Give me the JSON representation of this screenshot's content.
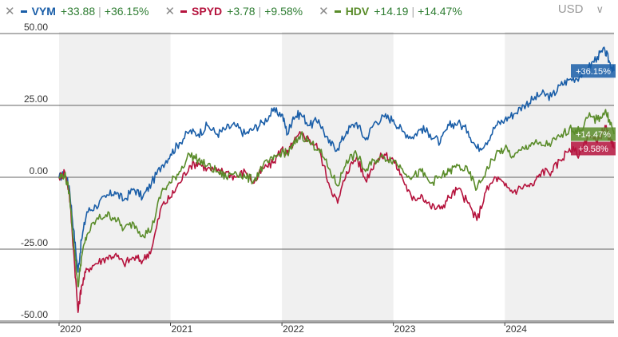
{
  "legend": [
    {
      "ticker": "VYM",
      "delta": "+33.88",
      "pct": "+36.15%",
      "color": "#1a5ea8"
    },
    {
      "ticker": "SPYD",
      "delta": "+3.78",
      "pct": "+9.58%",
      "color": "#b5133d"
    },
    {
      "ticker": "HDV",
      "delta": "+14.19",
      "pct": "+14.47%",
      "color": "#5a8c2a"
    }
  ],
  "currency": {
    "label": "USD",
    "chevron": "∨"
  },
  "chart_data": {
    "type": "line",
    "ylim": [
      -50,
      50
    ],
    "yticks": [
      "50.00",
      "25.00",
      "0.00",
      "-25.00",
      "-50.00"
    ],
    "ytick_values": [
      50,
      25,
      0,
      -25,
      -50
    ],
    "xticks": [
      "2020",
      "2021",
      "2022",
      "2023",
      "2024"
    ],
    "x_range": [
      2020.0,
      2024.98
    ],
    "shaded_years": [
      [
        2020,
        2021
      ],
      [
        2022,
        2023
      ],
      [
        2024,
        2024.98
      ]
    ],
    "series": [
      {
        "name": "VYM",
        "color": "#1a5ea8",
        "end_label": "+36.15%",
        "points": [
          [
            2020.0,
            0
          ],
          [
            2020.05,
            1
          ],
          [
            2020.09,
            -3
          ],
          [
            2020.13,
            -18
          ],
          [
            2020.17,
            -33
          ],
          [
            2020.2,
            -22
          ],
          [
            2020.25,
            -12
          ],
          [
            2020.33,
            -10
          ],
          [
            2020.42,
            -7
          ],
          [
            2020.5,
            -5
          ],
          [
            2020.58,
            -8
          ],
          [
            2020.67,
            -4
          ],
          [
            2020.75,
            -7
          ],
          [
            2020.83,
            -2
          ],
          [
            2020.92,
            4
          ],
          [
            2021.0,
            8
          ],
          [
            2021.08,
            12
          ],
          [
            2021.17,
            16
          ],
          [
            2021.25,
            15
          ],
          [
            2021.33,
            18
          ],
          [
            2021.42,
            15
          ],
          [
            2021.5,
            17
          ],
          [
            2021.58,
            18
          ],
          [
            2021.67,
            15
          ],
          [
            2021.75,
            17
          ],
          [
            2021.83,
            19
          ],
          [
            2021.92,
            23
          ],
          [
            2022.0,
            22
          ],
          [
            2022.05,
            15
          ],
          [
            2022.1,
            21
          ],
          [
            2022.17,
            22
          ],
          [
            2022.25,
            18
          ],
          [
            2022.33,
            20
          ],
          [
            2022.42,
            12
          ],
          [
            2022.5,
            10
          ],
          [
            2022.58,
            16
          ],
          [
            2022.67,
            19
          ],
          [
            2022.75,
            13
          ],
          [
            2022.83,
            19
          ],
          [
            2022.92,
            21
          ],
          [
            2023.0,
            20
          ],
          [
            2023.08,
            16
          ],
          [
            2023.17,
            14
          ],
          [
            2023.25,
            17
          ],
          [
            2023.33,
            15
          ],
          [
            2023.42,
            12
          ],
          [
            2023.5,
            18
          ],
          [
            2023.58,
            19
          ],
          [
            2023.67,
            16
          ],
          [
            2023.75,
            10
          ],
          [
            2023.83,
            12
          ],
          [
            2023.92,
            18
          ],
          [
            2024.0,
            20
          ],
          [
            2024.08,
            22
          ],
          [
            2024.17,
            25
          ],
          [
            2024.25,
            27
          ],
          [
            2024.33,
            29
          ],
          [
            2024.42,
            28
          ],
          [
            2024.5,
            32
          ],
          [
            2024.58,
            34
          ],
          [
            2024.67,
            35
          ],
          [
            2024.75,
            38
          ],
          [
            2024.83,
            42
          ],
          [
            2024.9,
            44
          ],
          [
            2024.94,
            40
          ],
          [
            2024.98,
            37
          ]
        ]
      },
      {
        "name": "SPYD",
        "color": "#b5133d",
        "end_label": "+9.58%",
        "points": [
          [
            2020.0,
            0
          ],
          [
            2020.05,
            2
          ],
          [
            2020.09,
            -5
          ],
          [
            2020.13,
            -25
          ],
          [
            2020.17,
            -47
          ],
          [
            2020.2,
            -38
          ],
          [
            2020.25,
            -32
          ],
          [
            2020.33,
            -30
          ],
          [
            2020.42,
            -28
          ],
          [
            2020.5,
            -27
          ],
          [
            2020.58,
            -30
          ],
          [
            2020.67,
            -28
          ],
          [
            2020.75,
            -29
          ],
          [
            2020.83,
            -25
          ],
          [
            2020.92,
            -10
          ],
          [
            2021.0,
            -7
          ],
          [
            2021.08,
            -2
          ],
          [
            2021.17,
            4
          ],
          [
            2021.25,
            5
          ],
          [
            2021.33,
            3
          ],
          [
            2021.42,
            2
          ],
          [
            2021.5,
            2
          ],
          [
            2021.58,
            0
          ],
          [
            2021.67,
            2
          ],
          [
            2021.75,
            -2
          ],
          [
            2021.83,
            3
          ],
          [
            2021.92,
            5
          ],
          [
            2022.0,
            10
          ],
          [
            2022.05,
            8
          ],
          [
            2022.1,
            12
          ],
          [
            2022.17,
            15
          ],
          [
            2022.25,
            13
          ],
          [
            2022.33,
            10
          ],
          [
            2022.42,
            -2
          ],
          [
            2022.5,
            -9
          ],
          [
            2022.58,
            2
          ],
          [
            2022.67,
            7
          ],
          [
            2022.75,
            -1
          ],
          [
            2022.83,
            5
          ],
          [
            2022.92,
            8
          ],
          [
            2023.0,
            6
          ],
          [
            2023.08,
            0
          ],
          [
            2023.17,
            -8
          ],
          [
            2023.25,
            -6
          ],
          [
            2023.33,
            -10
          ],
          [
            2023.42,
            -11
          ],
          [
            2023.5,
            -7
          ],
          [
            2023.58,
            -4
          ],
          [
            2023.67,
            -9
          ],
          [
            2023.75,
            -15
          ],
          [
            2023.83,
            -5
          ],
          [
            2023.92,
            0
          ],
          [
            2024.0,
            -3
          ],
          [
            2024.08,
            -5
          ],
          [
            2024.17,
            -3
          ],
          [
            2024.25,
            -3
          ],
          [
            2024.33,
            2
          ],
          [
            2024.42,
            2
          ],
          [
            2024.5,
            6
          ],
          [
            2024.58,
            10
          ],
          [
            2024.67,
            8
          ],
          [
            2024.75,
            15
          ],
          [
            2024.83,
            12
          ],
          [
            2024.9,
            18
          ],
          [
            2024.94,
            13
          ],
          [
            2024.98,
            10
          ]
        ]
      },
      {
        "name": "HDV",
        "color": "#5a8c2a",
        "end_label": "+14.47%",
        "points": [
          [
            2020.0,
            0
          ],
          [
            2020.05,
            1
          ],
          [
            2020.09,
            -5
          ],
          [
            2020.13,
            -22
          ],
          [
            2020.17,
            -38
          ],
          [
            2020.2,
            -28
          ],
          [
            2020.25,
            -20
          ],
          [
            2020.33,
            -15
          ],
          [
            2020.42,
            -13
          ],
          [
            2020.5,
            -14
          ],
          [
            2020.58,
            -18
          ],
          [
            2020.67,
            -16
          ],
          [
            2020.75,
            -20
          ],
          [
            2020.83,
            -18
          ],
          [
            2020.92,
            -5
          ],
          [
            2021.0,
            -2
          ],
          [
            2021.08,
            2
          ],
          [
            2021.17,
            8
          ],
          [
            2021.25,
            6
          ],
          [
            2021.33,
            4
          ],
          [
            2021.42,
            2
          ],
          [
            2021.5,
            0
          ],
          [
            2021.58,
            2
          ],
          [
            2021.67,
            0
          ],
          [
            2021.75,
            -1
          ],
          [
            2021.83,
            4
          ],
          [
            2021.92,
            6
          ],
          [
            2022.0,
            9
          ],
          [
            2022.05,
            8
          ],
          [
            2022.1,
            11
          ],
          [
            2022.17,
            15
          ],
          [
            2022.25,
            12
          ],
          [
            2022.33,
            10
          ],
          [
            2022.42,
            3
          ],
          [
            2022.5,
            -3
          ],
          [
            2022.58,
            6
          ],
          [
            2022.67,
            8
          ],
          [
            2022.75,
            2
          ],
          [
            2022.83,
            6
          ],
          [
            2022.92,
            7
          ],
          [
            2023.0,
            6
          ],
          [
            2023.08,
            3
          ],
          [
            2023.17,
            0
          ],
          [
            2023.25,
            2
          ],
          [
            2023.33,
            -2
          ],
          [
            2023.42,
            0
          ],
          [
            2023.5,
            2
          ],
          [
            2023.58,
            4
          ],
          [
            2023.67,
            2
          ],
          [
            2023.75,
            -4
          ],
          [
            2023.83,
            2
          ],
          [
            2023.92,
            8
          ],
          [
            2024.0,
            10
          ],
          [
            2024.08,
            7
          ],
          [
            2024.17,
            10
          ],
          [
            2024.25,
            12
          ],
          [
            2024.33,
            11
          ],
          [
            2024.42,
            12
          ],
          [
            2024.5,
            14
          ],
          [
            2024.58,
            17
          ],
          [
            2024.67,
            16
          ],
          [
            2024.75,
            21
          ],
          [
            2024.83,
            20
          ],
          [
            2024.9,
            23
          ],
          [
            2024.94,
            20
          ],
          [
            2024.98,
            15
          ]
        ]
      }
    ]
  }
}
